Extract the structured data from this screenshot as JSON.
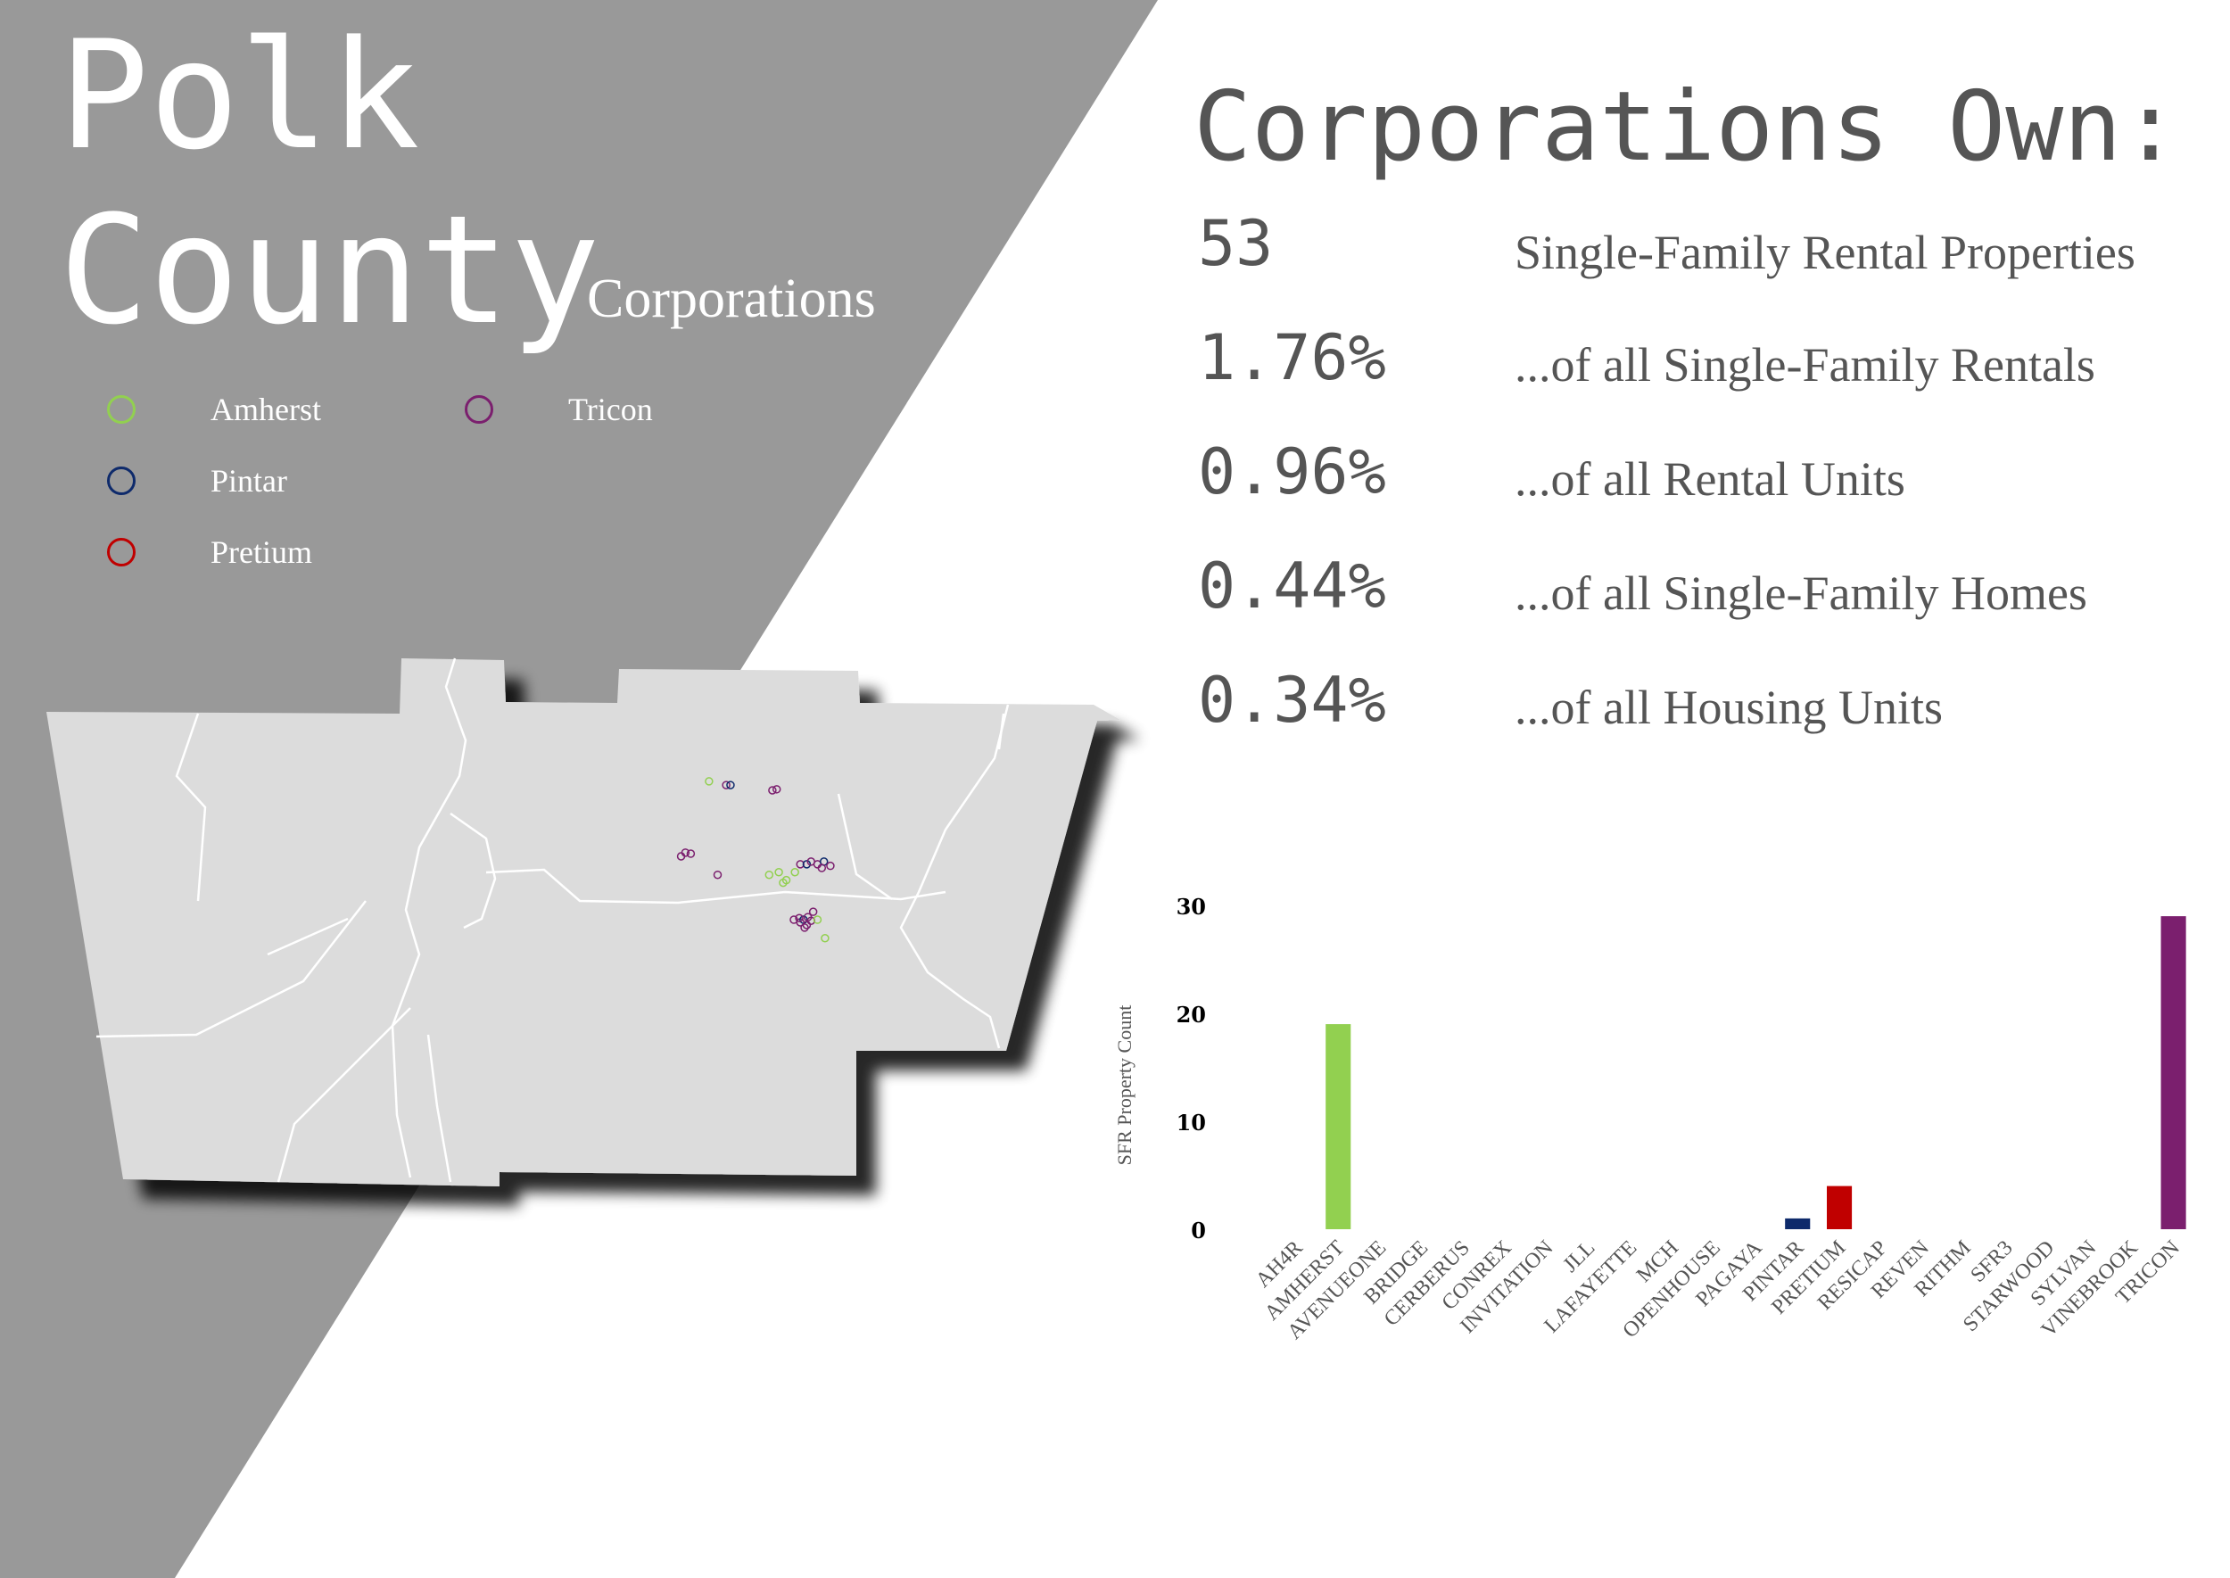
{
  "title": {
    "line1": "Polk",
    "line2": "County"
  },
  "subtitle": "Corporations",
  "legend": [
    {
      "name": "Amherst",
      "color": "#92d050"
    },
    {
      "name": "Pintar",
      "color": "#0e2a6b"
    },
    {
      "name": "Pretium",
      "color": "#c00000"
    },
    {
      "name": "Tricon",
      "color": "#7b1f6e"
    }
  ],
  "stats": {
    "title": "Corporations Own:",
    "rows": [
      {
        "value": "53",
        "label": "Single-Family Rental Properties"
      },
      {
        "value": "1.76%",
        "label": "...of all Single-Family Rentals"
      },
      {
        "value": "0.96%",
        "label": "...of all Rental Units"
      },
      {
        "value": "0.44%",
        "label": "...of all Single-Family Homes"
      },
      {
        "value": "0.34%",
        "label": "...of all Housing Units"
      }
    ]
  },
  "map": {
    "fill": "#dcdcdc",
    "road_color": "#ffffff",
    "points": [
      {
        "corp": "Amherst",
        "lon_frac": 0.72,
        "lat_frac": 0.3
      },
      {
        "corp": "Tricon",
        "lon_frac": 0.75,
        "lat_frac": 0.31
      },
      {
        "corp": "Tricon",
        "lon_frac": 0.79,
        "lat_frac": 0.32
      }
    ]
  },
  "chart_data": {
    "type": "bar",
    "ylabel": "SFR Property Count",
    "ylim": [
      0,
      30
    ],
    "yticks": [
      0,
      10,
      20,
      30
    ],
    "categories": [
      "AH4R",
      "AMHERST",
      "AVENUEONE",
      "BRIDGE",
      "CERBERUS",
      "CONREX",
      "INVITATION",
      "JLL",
      "LAFAYETTE",
      "MCH",
      "OPENHOUSE",
      "PAGAYA",
      "PINTAR",
      "PRETIUM",
      "RESICAP",
      "REVEN",
      "RITHM",
      "SFR3",
      "STARWOOD",
      "SYLVAN",
      "VINEBROOK",
      "TRICON"
    ],
    "values": [
      0,
      19,
      0,
      0,
      0,
      0,
      0,
      0,
      0,
      0,
      0,
      0,
      1,
      4,
      0,
      0,
      0,
      0,
      0,
      0,
      0,
      29
    ],
    "colors": [
      "#92d050",
      "#92d050",
      "#92d050",
      "#92d050",
      "#92d050",
      "#92d050",
      "#92d050",
      "#92d050",
      "#92d050",
      "#92d050",
      "#92d050",
      "#92d050",
      "#0e2a6b",
      "#c00000",
      "#92d050",
      "#92d050",
      "#92d050",
      "#92d050",
      "#92d050",
      "#92d050",
      "#92d050",
      "#7b1f6e"
    ],
    "grid": false,
    "legend": "none"
  }
}
